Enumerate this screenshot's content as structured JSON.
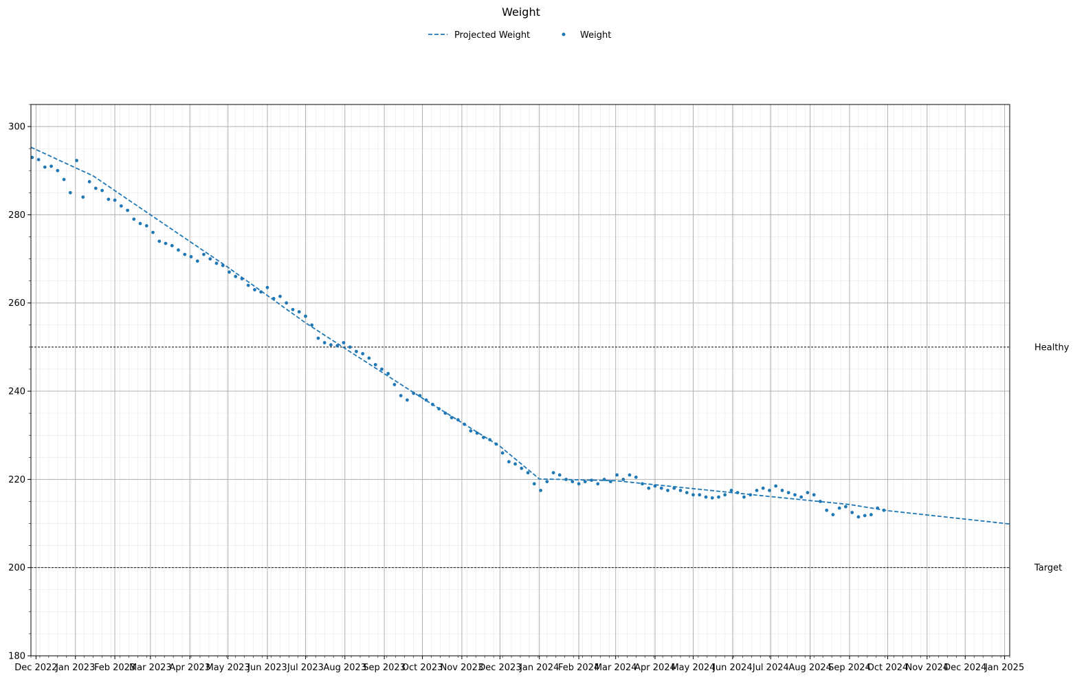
{
  "chart_data": {
    "type": "scatter",
    "title": "Weight",
    "xlabel": "",
    "ylabel": "",
    "legend": {
      "placement": "top-center",
      "entries": [
        {
          "label": "Projected Weight",
          "style": "dashed-line"
        },
        {
          "label": "Weight",
          "style": "dot"
        }
      ]
    },
    "xlim": [
      "2022-11-27",
      "2025-01-05"
    ],
    "ylim": [
      180,
      305
    ],
    "x_tick_labels": [
      "Dec 2022",
      "Jan 2023",
      "Feb 2023",
      "Mar 2023",
      "Apr 2023",
      "May 2023",
      "Jun 2023",
      "Jul 2023",
      "Aug 2023",
      "Sep 2023",
      "Oct 2023",
      "Nov 2023",
      "Dec 2023",
      "Jan 2024",
      "Feb 2024",
      "Mar 2024",
      "Apr 2024",
      "May 2024",
      "Jun 2024",
      "Jul 2024",
      "Aug 2024",
      "Sep 2024",
      "Oct 2024",
      "Nov 2024",
      "Dec 2024",
      "Jan 2025"
    ],
    "x_ticks": [
      "2022-12-01",
      "2023-01-01",
      "2023-02-01",
      "2023-03-01",
      "2023-04-01",
      "2023-05-01",
      "2023-06-01",
      "2023-07-01",
      "2023-08-01",
      "2023-09-01",
      "2023-10-01",
      "2023-11-01",
      "2023-12-01",
      "2024-01-01",
      "2024-02-01",
      "2024-03-01",
      "2024-04-01",
      "2024-05-01",
      "2024-06-01",
      "2024-07-01",
      "2024-08-01",
      "2024-09-01",
      "2024-10-01",
      "2024-11-01",
      "2024-12-01",
      "2025-01-01"
    ],
    "y_ticks": [
      180,
      200,
      220,
      240,
      260,
      280,
      300
    ],
    "grid": "major and minor",
    "reference_lines": [
      {
        "label": "Healthy",
        "y": 250
      },
      {
        "label": "Target",
        "y": 200
      }
    ],
    "color": "#1f77b4",
    "series": [
      {
        "name": "Projected Weight",
        "style": "dashed-line",
        "x": [
          "2022-11-27",
          "2023-01-15",
          "2023-03-01",
          "2023-05-01",
          "2023-07-01",
          "2023-08-01",
          "2023-10-01",
          "2023-12-01",
          "2024-01-01",
          "2024-03-01",
          "2024-05-01",
          "2024-07-01",
          "2024-09-01",
          "2024-10-01",
          "2025-01-05"
        ],
        "y": [
          295.3,
          288.8,
          280.0,
          268.1,
          255.5,
          249.7,
          238.4,
          227.5,
          220.1,
          219.7,
          217.9,
          216.1,
          214.3,
          212.9,
          209.9
        ]
      },
      {
        "name": "Weight",
        "style": "dots",
        "x": [
          "2022-11-28",
          "2022-12-03",
          "2022-12-08",
          "2022-12-13",
          "2022-12-18",
          "2022-12-23",
          "2022-12-28",
          "2023-01-02",
          "2023-01-07",
          "2023-01-12",
          "2023-01-17",
          "2023-01-22",
          "2023-01-27",
          "2023-02-01",
          "2023-02-06",
          "2023-02-11",
          "2023-02-16",
          "2023-02-21",
          "2023-02-26",
          "2023-03-03",
          "2023-03-08",
          "2023-03-13",
          "2023-03-18",
          "2023-03-23",
          "2023-03-28",
          "2023-04-02",
          "2023-04-07",
          "2023-04-12",
          "2023-04-17",
          "2023-04-22",
          "2023-04-27",
          "2023-05-02",
          "2023-05-07",
          "2023-05-12",
          "2023-05-17",
          "2023-05-22",
          "2023-05-27",
          "2023-06-01",
          "2023-06-06",
          "2023-06-11",
          "2023-06-16",
          "2023-06-21",
          "2023-06-26",
          "2023-07-01",
          "2023-07-06",
          "2023-07-11",
          "2023-07-16",
          "2023-07-21",
          "2023-07-26",
          "2023-07-31",
          "2023-08-05",
          "2023-08-10",
          "2023-08-15",
          "2023-08-20",
          "2023-08-25",
          "2023-08-30",
          "2023-09-04",
          "2023-09-09",
          "2023-09-14",
          "2023-09-19",
          "2023-09-24",
          "2023-09-29",
          "2023-10-04",
          "2023-10-09",
          "2023-10-14",
          "2023-10-19",
          "2023-10-24",
          "2023-10-29",
          "2023-11-03",
          "2023-11-08",
          "2023-11-13",
          "2023-11-18",
          "2023-11-23",
          "2023-11-28",
          "2023-12-03",
          "2023-12-08",
          "2023-12-13",
          "2023-12-18",
          "2023-12-23",
          "2023-12-28",
          "2024-01-02",
          "2024-01-07",
          "2024-01-12",
          "2024-01-17",
          "2024-01-22",
          "2024-01-27",
          "2024-02-01",
          "2024-02-06",
          "2024-02-11",
          "2024-02-16",
          "2024-02-21",
          "2024-02-26",
          "2024-03-02",
          "2024-03-07",
          "2024-03-12",
          "2024-03-17",
          "2024-03-22",
          "2024-03-27",
          "2024-04-01",
          "2024-04-06",
          "2024-04-11",
          "2024-04-16",
          "2024-04-21",
          "2024-04-26",
          "2024-05-01",
          "2024-05-06",
          "2024-05-11",
          "2024-05-16",
          "2024-05-21",
          "2024-05-26",
          "2024-05-31",
          "2024-06-05",
          "2024-06-10",
          "2024-06-15",
          "2024-06-20",
          "2024-06-25",
          "2024-06-30",
          "2024-07-05",
          "2024-07-10",
          "2024-07-15",
          "2024-07-20",
          "2024-07-25",
          "2024-07-30",
          "2024-08-04",
          "2024-08-09",
          "2024-08-14",
          "2024-08-19",
          "2024-08-24",
          "2024-08-29",
          "2024-09-03",
          "2024-09-08",
          "2024-09-13",
          "2024-09-18",
          "2024-09-23",
          "2024-09-28"
        ],
        "y": [
          293.0,
          292.5,
          290.8,
          291.0,
          290.0,
          288.0,
          285.0,
          292.3,
          284.0,
          287.5,
          286.0,
          285.5,
          283.5,
          283.3,
          282.0,
          281.0,
          279.0,
          278.0,
          277.5,
          276.0,
          274.0,
          273.5,
          273.0,
          272.0,
          271.0,
          270.5,
          269.5,
          271.0,
          270.0,
          269.0,
          268.5,
          267.0,
          266.0,
          265.5,
          264.0,
          263.0,
          262.5,
          263.5,
          261.0,
          261.5,
          260.0,
          258.5,
          258.0,
          257.0,
          255.0,
          252.0,
          251.0,
          250.5,
          250.3,
          251.0,
          250.0,
          249.0,
          248.5,
          247.5,
          246.0,
          245.0,
          244.0,
          241.5,
          239.0,
          238.0,
          239.5,
          239.0,
          238.0,
          237.0,
          236.0,
          235.0,
          234.0,
          233.5,
          232.5,
          231.0,
          230.5,
          229.5,
          229.0,
          228.0,
          226.0,
          224.0,
          223.5,
          222.5,
          221.5,
          219.0,
          217.5,
          219.5,
          221.5,
          221.0,
          220.0,
          219.5,
          219.0,
          219.5,
          219.8,
          219.0,
          220.0,
          219.5,
          221.0,
          220.0,
          221.0,
          220.5,
          219.0,
          218.0,
          218.5,
          218.0,
          217.5,
          218.0,
          217.5,
          217.0,
          216.5,
          216.5,
          216.0,
          215.8,
          216.0,
          216.5,
          217.5,
          217.0,
          216.0,
          216.5,
          217.5,
          218.0,
          217.5,
          218.5,
          217.5,
          217.0,
          216.5,
          216.0,
          217.0,
          216.5,
          215.0,
          213.0,
          212.0,
          213.5,
          213.8,
          212.5,
          211.5,
          211.8,
          212.0,
          213.5,
          213.0
        ]
      }
    ]
  }
}
